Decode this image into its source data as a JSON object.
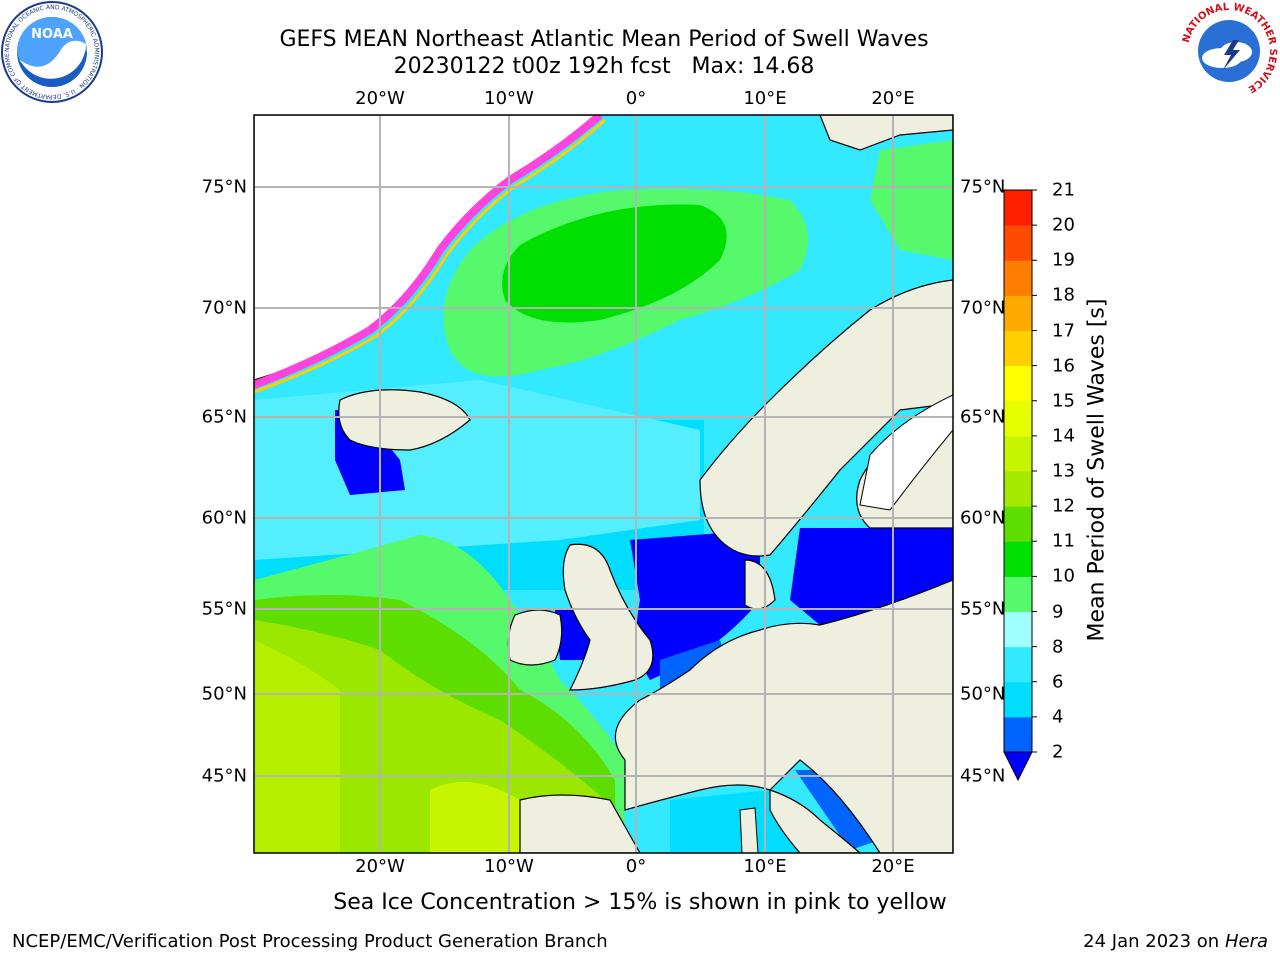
{
  "title": {
    "line1": "GEFS MEAN Northeast Atlantic Mean Period of Swell Waves",
    "line2": "20230122 t00z 192h fcst   Max: 14.68"
  },
  "map": {
    "lon_labels": [
      "20°W",
      "10°W",
      "0°",
      "10°E",
      "20°E"
    ],
    "lat_labels": [
      "75°N",
      "70°N",
      "65°N",
      "60°N",
      "55°N",
      "50°N",
      "45°N"
    ],
    "colors": {
      "land": "#efefdf",
      "coast": "#000000",
      "grid": "#b4b4b4",
      "sea_ice": "#ff44dd"
    }
  },
  "colorbar": {
    "label": "Mean Period of Swell Waves [s]",
    "ticks": [
      "2",
      "4",
      "6",
      "8",
      "9",
      "10",
      "11",
      "12",
      "13",
      "14",
      "15",
      "16",
      "17",
      "18",
      "19",
      "20",
      "21"
    ],
    "colors": [
      "#0000ff",
      "#0064ff",
      "#00ddff",
      "#33e9ff",
      "#a0ffff",
      "#55f96b",
      "#00e000",
      "#5ddd00",
      "#a6e900",
      "#c7f500",
      "#e5ff00",
      "#ffff00",
      "#ffd000",
      "#ffaa00",
      "#ff7d00",
      "#ff4b00",
      "#ff2000",
      "#ff0000"
    ]
  },
  "note": "Sea Ice Concentration > 15% is shown in pink to yellow",
  "footer": {
    "left": "NCEP/EMC/Verification Post Processing Product Generation Branch",
    "right_prefix": "24 Jan 2023 on ",
    "right_italic": "Hera"
  },
  "logos": {
    "noaa": "NOAA",
    "noaa_ring": "NATIONAL OCEANIC AND ATMOSPHERIC ADMINISTRATION · U.S. DEPARTMENT OF COMMERCE",
    "nws_ring": "NATIONAL WEATHER SERVICE"
  }
}
